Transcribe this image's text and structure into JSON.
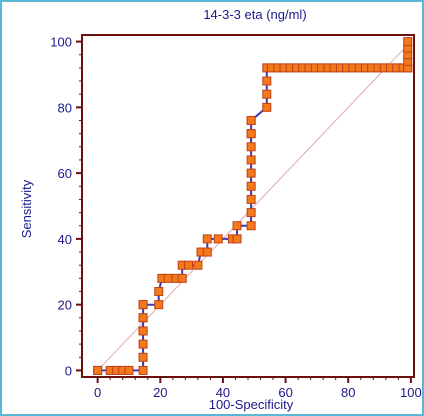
{
  "chart_data": {
    "type": "line",
    "title": "14-3-3 eta (ng/ml)",
    "xlabel": "100-Specificity",
    "ylabel": "Sensitivity",
    "xlim": [
      -5,
      101
    ],
    "ylim": [
      -2,
      102
    ],
    "xticks": [
      0,
      20,
      40,
      60,
      80,
      100
    ],
    "yticks": [
      0,
      20,
      40,
      60,
      80,
      100
    ],
    "grid": false,
    "legend": "none",
    "colors": {
      "curve": "#3a3ab8",
      "marker_fill": "#f27a1a",
      "marker_stroke": "#c0401a",
      "diagonal": "#e0a8b0",
      "axes": "#6b1010",
      "text": "#1a1a8c"
    },
    "series": [
      {
        "x": [
          0,
          0,
          4,
          6,
          8,
          10,
          14.5,
          14.5,
          14.5,
          14.5,
          14.5,
          14.5,
          14.5,
          14.5,
          14.5,
          19.5,
          19.5,
          20.5,
          22.5,
          25,
          27,
          27,
          29,
          32,
          33,
          35,
          35,
          38.5,
          43,
          44.5,
          44.5,
          49,
          49,
          49,
          49,
          49,
          49,
          49,
          49,
          49,
          49,
          49,
          54,
          54,
          54,
          54,
          55.5,
          57.5,
          59.5,
          61.5,
          63.5,
          65.5,
          67.5,
          69.5,
          71.5,
          73.5,
          75.5,
          77.5,
          79.5,
          81.5,
          83.5,
          85.5,
          87.5,
          89.5,
          91.5,
          93.5,
          95.5,
          97.5,
          99,
          99,
          99,
          99,
          99,
          99
        ],
        "y": [
          0,
          0,
          0,
          0,
          0,
          0,
          0,
          4,
          8,
          12,
          16,
          20,
          16,
          12,
          20,
          20,
          24,
          28,
          28,
          28,
          28,
          32,
          32,
          32,
          36,
          36,
          40,
          40,
          40,
          40,
          44,
          44,
          48,
          52,
          56,
          60,
          64,
          68,
          72,
          76,
          72,
          76,
          80,
          84,
          88,
          92,
          92,
          92,
          92,
          92,
          92,
          92,
          92,
          92,
          92,
          92,
          92,
          92,
          92,
          92,
          92,
          92,
          92,
          92,
          92,
          92,
          92,
          92,
          92,
          92,
          94,
          96,
          98,
          100
        ]
      }
    ]
  }
}
